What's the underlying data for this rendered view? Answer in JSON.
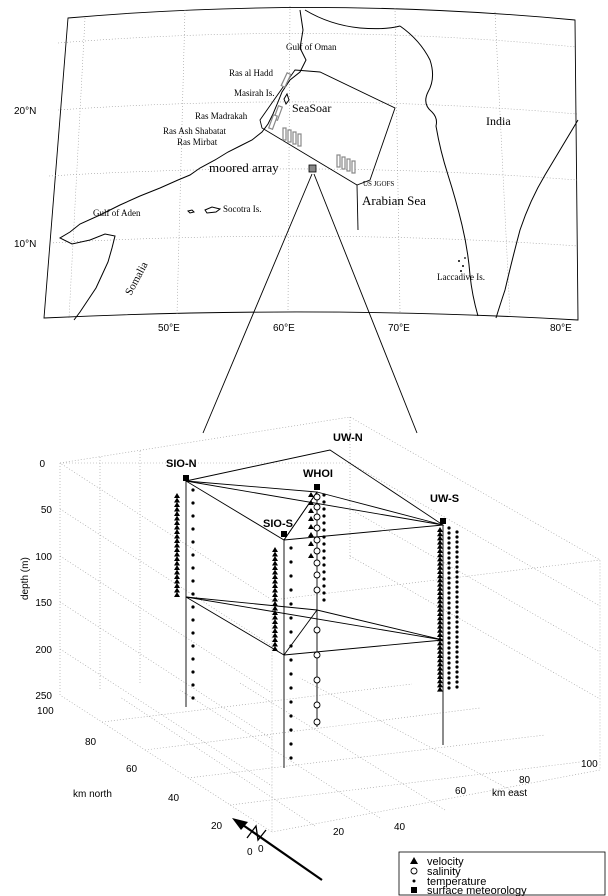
{
  "map": {
    "lat_labels": [
      "20°N",
      "10°N"
    ],
    "lon_labels": [
      "50°E",
      "60°E",
      "70°E",
      "80°E"
    ],
    "places": {
      "gulf_oman": "Gulf of Oman",
      "ras_hadd": "Ras al Hadd",
      "masirah": "Masirah Is.",
      "seasoar": "SeaSoar",
      "ras_madrakah": "Ras Madrakah",
      "ras_shabatat": "Ras Ash Shabatat",
      "ras_mirbat": "Ras Mirbat",
      "india": "India",
      "moored_array": "moored array",
      "us_jgofs": "US JGOFS",
      "arabian_sea": "Arabian Sea",
      "gulf_aden": "Gulf of Aden",
      "socotra": "Socotra Is.",
      "somalia": "Somalia",
      "laccadive": "Laccadive Is."
    }
  },
  "box3d": {
    "moorings": {
      "sio_n": "SIO-N",
      "uw_n": "UW-N",
      "whoi": "WHOI",
      "uw_s": "UW-S",
      "sio_s": "SIO-S"
    },
    "depth_axis_label": "depth (m)",
    "depth_ticks": [
      "0",
      "50",
      "100",
      "150",
      "200",
      "250"
    ],
    "north_axis_label": "km north",
    "north_ticks": [
      "100",
      "80",
      "60",
      "40",
      "20",
      "0"
    ],
    "east_axis_label": "km east",
    "east_ticks": [
      "0",
      "20",
      "40",
      "60",
      "80",
      "100"
    ]
  },
  "legend": {
    "velocity": "velocity",
    "salinity": "salinity",
    "temperature": "temperature",
    "surface_met": "surface meteorology"
  }
}
